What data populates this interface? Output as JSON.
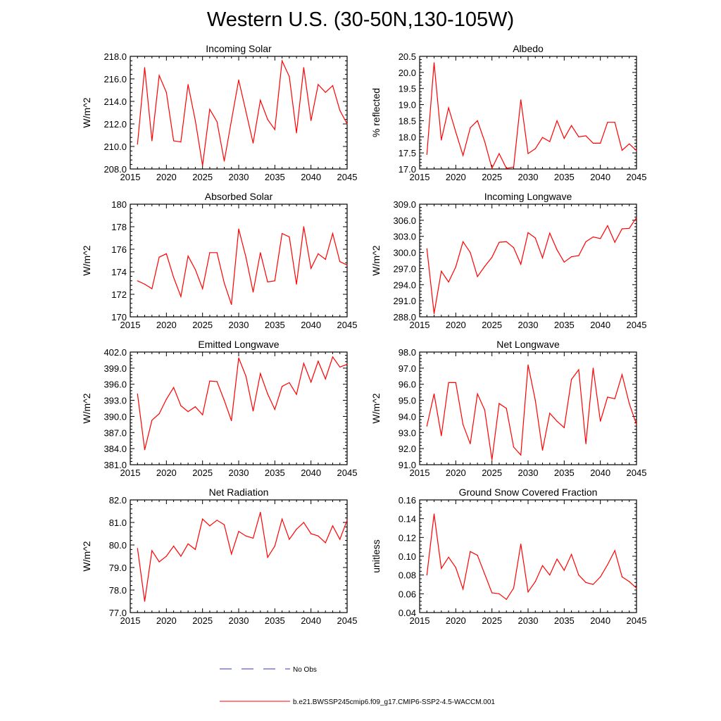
{
  "title": "Western U.S. (30-50N,130-105W)",
  "colors": {
    "model": "#ff0000",
    "obs": "#3333cc",
    "axis": "#000000"
  },
  "legend": {
    "obs_label": "No Obs",
    "model_label": "b.e21.BWSSP245cmip6.f09_g17.CMIP6-SSP2-4.5-WACCM.001"
  },
  "chart_data": [
    {
      "type": "line",
      "title": "Incoming Solar",
      "ylabel": "W/m^2",
      "xlim": [
        2015,
        2045
      ],
      "ylim": [
        208.0,
        218.0
      ],
      "xticks": [
        2015,
        2020,
        2025,
        2030,
        2035,
        2040,
        2045
      ],
      "yticks": [
        "208.0",
        "210.0",
        "212.0",
        "214.0",
        "216.0",
        "218.0"
      ],
      "x": [
        2016,
        2017,
        2018,
        2019,
        2020,
        2021,
        2022,
        2023,
        2024,
        2025,
        2026,
        2027,
        2028,
        2029,
        2030,
        2031,
        2032,
        2033,
        2034,
        2035,
        2036,
        2037,
        2038,
        2039,
        2040,
        2041,
        2042,
        2043,
        2044,
        2045
      ],
      "series": [
        {
          "values": [
            210.2,
            217.0,
            210.5,
            216.3,
            214.8,
            210.5,
            210.4,
            215.5,
            212.3,
            208.3,
            213.3,
            212.2,
            208.7,
            212.3,
            215.9,
            213.1,
            210.3,
            214.1,
            212.4,
            211.5,
            217.6,
            216.2,
            211.2,
            217.0,
            212.3,
            215.5,
            214.8,
            215.4,
            213.2,
            212.0
          ]
        }
      ]
    },
    {
      "type": "line",
      "title": "Albedo",
      "ylabel": "% reflected",
      "xlim": [
        2015,
        2045
      ],
      "ylim": [
        17.0,
        20.5
      ],
      "xticks": [
        2015,
        2020,
        2025,
        2030,
        2035,
        2040,
        2045
      ],
      "yticks": [
        "17.0",
        "17.5",
        "18.0",
        "18.5",
        "19.0",
        "19.5",
        "20.0",
        "20.5"
      ],
      "x": [
        2016,
        2017,
        2018,
        2019,
        2020,
        2021,
        2022,
        2023,
        2024,
        2025,
        2026,
        2027,
        2028,
        2029,
        2030,
        2031,
        2032,
        2033,
        2034,
        2035,
        2036,
        2037,
        2038,
        2039,
        2040,
        2041,
        2042,
        2043,
        2044,
        2045
      ],
      "series": [
        {
          "values": [
            17.45,
            20.3,
            17.9,
            18.9,
            18.15,
            17.42,
            18.28,
            18.5,
            17.85,
            17.02,
            17.48,
            17.02,
            17.06,
            19.15,
            17.48,
            17.63,
            17.98,
            17.85,
            18.5,
            17.95,
            18.35,
            18.0,
            18.03,
            17.8,
            17.8,
            18.45,
            18.45,
            17.58,
            17.78,
            17.57
          ]
        }
      ]
    },
    {
      "type": "line",
      "title": "Absorbed Solar",
      "ylabel": "W/m^2",
      "xlim": [
        2015,
        2045
      ],
      "ylim": [
        170,
        180
      ],
      "xticks": [
        2015,
        2020,
        2025,
        2030,
        2035,
        2040,
        2045
      ],
      "yticks": [
        "170",
        "172",
        "174",
        "176",
        "178",
        "180"
      ],
      "x": [
        2016,
        2017,
        2018,
        2019,
        2020,
        2021,
        2022,
        2023,
        2024,
        2025,
        2026,
        2027,
        2028,
        2029,
        2030,
        2031,
        2032,
        2033,
        2034,
        2035,
        2036,
        2037,
        2038,
        2039,
        2040,
        2041,
        2042,
        2043,
        2044,
        2045
      ],
      "series": [
        {
          "values": [
            173.2,
            172.9,
            172.5,
            175.3,
            175.6,
            173.5,
            171.8,
            175.4,
            174.2,
            172.5,
            175.7,
            175.7,
            173.0,
            171.1,
            177.8,
            175.3,
            172.2,
            175.7,
            173.1,
            173.2,
            177.4,
            177.1,
            172.9,
            178.0,
            174.3,
            175.6,
            175.1,
            177.4,
            174.9,
            174.6
          ]
        }
      ]
    },
    {
      "type": "line",
      "title": "Incoming Longwave",
      "ylabel": "W/m^2",
      "xlim": [
        2015,
        2045
      ],
      "ylim": [
        288.0,
        309.0
      ],
      "xticks": [
        2015,
        2020,
        2025,
        2030,
        2035,
        2040,
        2045
      ],
      "yticks": [
        "288.0",
        "291.0",
        "294.0",
        "297.0",
        "300.0",
        "303.0",
        "306.0",
        "309.0"
      ],
      "x": [
        2016,
        2017,
        2018,
        2019,
        2020,
        2021,
        2022,
        2023,
        2024,
        2025,
        2026,
        2027,
        2028,
        2029,
        2030,
        2031,
        2032,
        2033,
        2034,
        2035,
        2036,
        2037,
        2038,
        2039,
        2040,
        2041,
        2042,
        2043,
        2044,
        2045
      ],
      "series": [
        {
          "values": [
            300.7,
            288.6,
            296.5,
            294.5,
            297.3,
            302.0,
            300.0,
            295.5,
            297.4,
            299.1,
            301.9,
            302.0,
            300.9,
            297.8,
            303.7,
            302.7,
            299.0,
            303.6,
            300.5,
            298.2,
            299.2,
            299.4,
            302.0,
            302.9,
            302.6,
            305.0,
            301.9,
            304.4,
            304.5,
            306.5
          ]
        }
      ]
    },
    {
      "type": "line",
      "title": "Emitted Longwave",
      "ylabel": "W/m^2",
      "xlim": [
        2015,
        2045
      ],
      "ylim": [
        381.0,
        402.0
      ],
      "xticks": [
        2015,
        2020,
        2025,
        2030,
        2035,
        2040,
        2045
      ],
      "yticks": [
        "381.0",
        "384.0",
        "387.0",
        "390.0",
        "393.0",
        "396.0",
        "399.0",
        "402.0"
      ],
      "x": [
        2016,
        2017,
        2018,
        2019,
        2020,
        2021,
        2022,
        2023,
        2024,
        2025,
        2026,
        2027,
        2028,
        2029,
        2030,
        2031,
        2032,
        2033,
        2034,
        2035,
        2036,
        2037,
        2038,
        2039,
        2040,
        2041,
        2042,
        2043,
        2044,
        2045
      ],
      "series": [
        {
          "values": [
            394.2,
            383.8,
            389.3,
            390.5,
            393.2,
            395.4,
            392.0,
            390.9,
            391.8,
            390.3,
            396.6,
            396.5,
            393.0,
            389.2,
            400.9,
            397.5,
            391.0,
            398.0,
            394.2,
            391.3,
            395.6,
            396.3,
            394.1,
            399.9,
            396.4,
            400.3,
            397.0,
            401.1,
            399.2,
            399.7
          ]
        }
      ]
    },
    {
      "type": "line",
      "title": "Net Longwave",
      "ylabel": "W/m^2",
      "xlim": [
        2015,
        2045
      ],
      "ylim": [
        91.0,
        98.0
      ],
      "xticks": [
        2015,
        2020,
        2025,
        2030,
        2035,
        2040,
        2045
      ],
      "yticks": [
        "91.0",
        "92.0",
        "93.0",
        "94.0",
        "95.0",
        "96.0",
        "97.0",
        "98.0"
      ],
      "x": [
        2016,
        2017,
        2018,
        2019,
        2020,
        2021,
        2022,
        2023,
        2024,
        2025,
        2026,
        2027,
        2028,
        2029,
        2030,
        2031,
        2032,
        2033,
        2034,
        2035,
        2036,
        2037,
        2038,
        2039,
        2040,
        2041,
        2042,
        2043,
        2044,
        2045
      ],
      "series": [
        {
          "values": [
            93.4,
            95.4,
            92.8,
            96.1,
            96.1,
            93.5,
            92.3,
            95.4,
            94.4,
            91.3,
            94.8,
            94.5,
            92.1,
            91.6,
            97.2,
            95.0,
            91.9,
            94.2,
            93.7,
            93.3,
            96.3,
            96.9,
            92.3,
            97.0,
            93.7,
            95.2,
            95.1,
            96.6,
            94.8,
            93.5
          ]
        }
      ]
    },
    {
      "type": "line",
      "title": "Net Radiation",
      "ylabel": "W/m^2",
      "xlim": [
        2015,
        2045
      ],
      "ylim": [
        77.0,
        82.0
      ],
      "xticks": [
        2015,
        2020,
        2025,
        2030,
        2035,
        2040,
        2045
      ],
      "yticks": [
        "77.0",
        "78.0",
        "79.0",
        "80.0",
        "81.0",
        "82.0"
      ],
      "x": [
        2016,
        2017,
        2018,
        2019,
        2020,
        2021,
        2022,
        2023,
        2024,
        2025,
        2026,
        2027,
        2028,
        2029,
        2030,
        2031,
        2032,
        2033,
        2034,
        2035,
        2036,
        2037,
        2038,
        2039,
        2040,
        2041,
        2042,
        2043,
        2044,
        2045
      ],
      "series": [
        {
          "values": [
            79.85,
            77.5,
            79.75,
            79.25,
            79.5,
            79.95,
            79.5,
            80.05,
            79.8,
            81.15,
            80.85,
            81.1,
            80.9,
            79.6,
            80.6,
            80.4,
            80.3,
            81.45,
            79.45,
            79.95,
            81.15,
            80.25,
            80.7,
            81.0,
            80.5,
            80.4,
            80.1,
            80.85,
            80.25,
            81.1
          ]
        }
      ]
    },
    {
      "type": "line",
      "title": "Ground Snow Covered Fraction",
      "ylabel": "unitless",
      "xlim": [
        2015,
        2045
      ],
      "ylim": [
        0.04,
        0.16
      ],
      "xticks": [
        2015,
        2020,
        2025,
        2030,
        2035,
        2040,
        2045
      ],
      "yticks": [
        "0.04",
        "0.06",
        "0.08",
        "0.10",
        "0.12",
        "0.14",
        "0.16"
      ],
      "x": [
        2016,
        2017,
        2018,
        2019,
        2020,
        2021,
        2022,
        2023,
        2024,
        2025,
        2026,
        2027,
        2028,
        2029,
        2030,
        2031,
        2032,
        2033,
        2034,
        2035,
        2036,
        2037,
        2038,
        2039,
        2040,
        2041,
        2042,
        2043,
        2044,
        2045
      ],
      "series": [
        {
          "values": [
            0.08,
            0.145,
            0.087,
            0.099,
            0.088,
            0.065,
            0.105,
            0.101,
            0.081,
            0.061,
            0.06,
            0.054,
            0.066,
            0.113,
            0.062,
            0.073,
            0.09,
            0.08,
            0.097,
            0.085,
            0.102,
            0.08,
            0.072,
            0.07,
            0.078,
            0.091,
            0.106,
            0.078,
            0.073,
            0.066
          ]
        }
      ]
    }
  ]
}
